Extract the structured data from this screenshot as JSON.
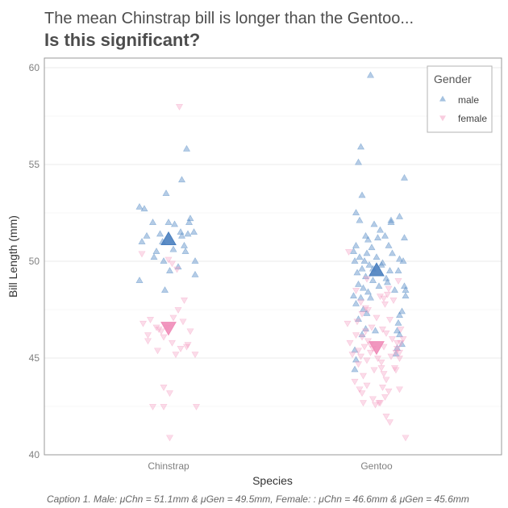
{
  "chart_data": {
    "type": "scatter",
    "title": "The mean Chinstrap bill is longer than the Gentoo...",
    "subtitle": "Is this significant?",
    "xlabel": "Species",
    "ylabel": "Bill Length (mm)",
    "categories": [
      "Chinstrap",
      "Gentoo"
    ],
    "ylim": [
      40,
      60.5
    ],
    "yticks": [
      40,
      45,
      50,
      55,
      60
    ],
    "grid": true,
    "legend": {
      "title": "Gender",
      "position": "top-right",
      "items": [
        {
          "label": "male",
          "shape": "triangle-up",
          "color": "#5b8fc7"
        },
        {
          "label": "female",
          "shape": "triangle-down",
          "color": "#f39bc0"
        }
      ]
    },
    "caption": "Caption 1. Male: μChn = 51.1mm & μGen = 49.5mm, Female: : μChn = 46.6mm & μGen = 45.6mm",
    "colors": {
      "male": "#5b8fc7",
      "female": "#f39bc0"
    },
    "series": [
      {
        "name": "male",
        "points": [
          [
            "Chinstrap",
            52.8,
            -0.24
          ],
          [
            "Chinstrap",
            52.7,
            -0.2
          ],
          [
            "Chinstrap",
            52.0,
            -0.13
          ],
          [
            "Chinstrap",
            51.3,
            -0.18
          ],
          [
            "Chinstrap",
            51.0,
            -0.22
          ],
          [
            "Chinstrap",
            51.4,
            -0.07
          ],
          [
            "Chinstrap",
            50.5,
            -0.1
          ],
          [
            "Chinstrap",
            50.2,
            -0.12
          ],
          [
            "Chinstrap",
            49.0,
            -0.24
          ],
          [
            "Chinstrap",
            53.5,
            -0.02
          ],
          [
            "Chinstrap",
            52.0,
            0.0
          ],
          [
            "Chinstrap",
            51.9,
            0.05
          ],
          [
            "Chinstrap",
            51.5,
            0.1
          ],
          [
            "Chinstrap",
            51.3,
            0.11
          ],
          [
            "Chinstrap",
            50.6,
            0.04
          ],
          [
            "Chinstrap",
            50.0,
            -0.04
          ],
          [
            "Chinstrap",
            49.5,
            0.01
          ],
          [
            "Chinstrap",
            48.5,
            -0.03
          ],
          [
            "Chinstrap",
            55.8,
            0.15
          ],
          [
            "Chinstrap",
            54.2,
            0.11
          ],
          [
            "Chinstrap",
            52.2,
            0.18
          ],
          [
            "Chinstrap",
            52.0,
            0.17
          ],
          [
            "Chinstrap",
            51.5,
            0.21
          ],
          [
            "Chinstrap",
            51.4,
            0.16
          ],
          [
            "Chinstrap",
            50.8,
            0.13
          ],
          [
            "Chinstrap",
            50.5,
            0.14
          ],
          [
            "Chinstrap",
            50.0,
            0.22
          ],
          [
            "Chinstrap",
            49.3,
            0.22
          ],
          [
            "Chinstrap",
            51.0,
            -0.05
          ],
          [
            "Chinstrap",
            49.7,
            0.08
          ],
          [
            "Gentoo",
            59.6,
            -0.05
          ],
          [
            "Gentoo",
            55.9,
            -0.13
          ],
          [
            "Gentoo",
            55.1,
            -0.15
          ],
          [
            "Gentoo",
            53.4,
            -0.12
          ],
          [
            "Gentoo",
            52.5,
            -0.17
          ],
          [
            "Gentoo",
            52.1,
            -0.14
          ],
          [
            "Gentoo",
            51.3,
            -0.09
          ],
          [
            "Gentoo",
            51.1,
            -0.07
          ],
          [
            "Gentoo",
            50.8,
            -0.17
          ],
          [
            "Gentoo",
            50.5,
            -0.19
          ],
          [
            "Gentoo",
            50.4,
            -0.08
          ],
          [
            "Gentoo",
            50.2,
            -0.14
          ],
          [
            "Gentoo",
            50.0,
            -0.18
          ],
          [
            "Gentoo",
            50.0,
            -0.1
          ],
          [
            "Gentoo",
            49.8,
            -0.06
          ],
          [
            "Gentoo",
            49.6,
            -0.12
          ],
          [
            "Gentoo",
            49.4,
            -0.16
          ],
          [
            "Gentoo",
            49.2,
            -0.09
          ],
          [
            "Gentoo",
            49.0,
            -0.03
          ],
          [
            "Gentoo",
            48.8,
            -0.15
          ],
          [
            "Gentoo",
            48.6,
            -0.11
          ],
          [
            "Gentoo",
            48.4,
            -0.07
          ],
          [
            "Gentoo",
            48.2,
            -0.19
          ],
          [
            "Gentoo",
            48.1,
            -0.13
          ],
          [
            "Gentoo",
            47.8,
            -0.17
          ],
          [
            "Gentoo",
            47.5,
            -0.11
          ],
          [
            "Gentoo",
            47.3,
            -0.08
          ],
          [
            "Gentoo",
            47.0,
            -0.15
          ],
          [
            "Gentoo",
            46.5,
            -0.09
          ],
          [
            "Gentoo",
            46.2,
            -0.12
          ],
          [
            "Gentoo",
            45.4,
            -0.18
          ],
          [
            "Gentoo",
            44.9,
            -0.17
          ],
          [
            "Gentoo",
            44.4,
            -0.18
          ],
          [
            "Gentoo",
            51.9,
            -0.02
          ],
          [
            "Gentoo",
            51.2,
            0.01
          ],
          [
            "Gentoo",
            50.7,
            -0.04
          ],
          [
            "Gentoo",
            50.2,
            0.0
          ],
          [
            "Gentoo",
            49.6,
            -0.03
          ],
          [
            "Gentoo",
            48.7,
            0.02
          ],
          [
            "Gentoo",
            48.1,
            -0.05
          ],
          [
            "Gentoo",
            46.4,
            -0.01
          ],
          [
            "Gentoo",
            52.1,
            0.12
          ],
          [
            "Gentoo",
            51.6,
            0.03
          ],
          [
            "Gentoo",
            51.3,
            0.07
          ],
          [
            "Gentoo",
            50.8,
            0.1
          ],
          [
            "Gentoo",
            50.4,
            0.13
          ],
          [
            "Gentoo",
            49.9,
            0.05
          ],
          [
            "Gentoo",
            49.5,
            0.11
          ],
          [
            "Gentoo",
            49.1,
            0.08
          ],
          [
            "Gentoo",
            48.5,
            0.15
          ],
          [
            "Gentoo",
            52.3,
            0.19
          ],
          [
            "Gentoo",
            52.0,
            0.12
          ],
          [
            "Gentoo",
            51.2,
            0.23
          ],
          [
            "Gentoo",
            50.1,
            0.19
          ],
          [
            "Gentoo",
            50.0,
            0.22
          ],
          [
            "Gentoo",
            49.5,
            0.18
          ],
          [
            "Gentoo",
            48.7,
            0.23
          ],
          [
            "Gentoo",
            48.5,
            0.24
          ],
          [
            "Gentoo",
            48.2,
            0.24
          ],
          [
            "Gentoo",
            54.3,
            0.23
          ],
          [
            "Gentoo",
            47.2,
            0.19
          ],
          [
            "Gentoo",
            46.8,
            0.18
          ],
          [
            "Gentoo",
            46.2,
            0.19
          ],
          [
            "Gentoo",
            45.7,
            0.21
          ],
          [
            "Gentoo",
            45.5,
            0.17
          ],
          [
            "Gentoo",
            45.2,
            0.16
          ],
          [
            "Gentoo",
            46.4,
            0.17
          ],
          [
            "Gentoo",
            47.4,
            0.21
          ],
          [
            "Gentoo",
            49.8,
            0.04
          ],
          [
            "Gentoo",
            48.9,
            0.09
          ]
        ]
      },
      {
        "name": "female",
        "points": [
          [
            "Chinstrap",
            58.0,
            0.09
          ],
          [
            "Chinstrap",
            50.4,
            -0.22
          ],
          [
            "Chinstrap",
            50.1,
            0.0
          ],
          [
            "Chinstrap",
            49.9,
            0.03
          ],
          [
            "Chinstrap",
            49.6,
            0.07
          ],
          [
            "Chinstrap",
            48.0,
            0.13
          ],
          [
            "Chinstrap",
            47.5,
            0.08
          ],
          [
            "Chinstrap",
            47.1,
            0.04
          ],
          [
            "Chinstrap",
            47.0,
            -0.15
          ],
          [
            "Chinstrap",
            46.8,
            -0.21
          ],
          [
            "Chinstrap",
            46.6,
            -0.01
          ],
          [
            "Chinstrap",
            46.5,
            -0.08
          ],
          [
            "Chinstrap",
            46.4,
            -0.06
          ],
          [
            "Chinstrap",
            46.2,
            -0.17
          ],
          [
            "Chinstrap",
            46.1,
            -0.04
          ],
          [
            "Chinstrap",
            45.9,
            -0.17
          ],
          [
            "Chinstrap",
            45.8,
            0.03
          ],
          [
            "Chinstrap",
            45.6,
            0.15
          ],
          [
            "Chinstrap",
            45.5,
            0.1
          ],
          [
            "Chinstrap",
            45.4,
            -0.09
          ],
          [
            "Chinstrap",
            45.2,
            0.06
          ],
          [
            "Chinstrap",
            45.2,
            0.22
          ],
          [
            "Chinstrap",
            46.4,
            0.18
          ],
          [
            "Chinstrap",
            46.9,
            0.12
          ],
          [
            "Chinstrap",
            45.7,
            0.16
          ],
          [
            "Chinstrap",
            43.5,
            -0.04
          ],
          [
            "Chinstrap",
            43.2,
            0.01
          ],
          [
            "Chinstrap",
            42.5,
            -0.13
          ],
          [
            "Chinstrap",
            42.5,
            -0.04
          ],
          [
            "Chinstrap",
            42.5,
            0.23
          ],
          [
            "Chinstrap",
            40.9,
            0.01
          ],
          [
            "Chinstrap",
            46.6,
            -0.1
          ],
          [
            "Gentoo",
            50.5,
            -0.23
          ],
          [
            "Gentoo",
            49.1,
            -0.08
          ],
          [
            "Gentoo",
            48.5,
            -0.17
          ],
          [
            "Gentoo",
            48.2,
            0.03
          ],
          [
            "Gentoo",
            48.1,
            0.06
          ],
          [
            "Gentoo",
            47.9,
            -0.13
          ],
          [
            "Gentoo",
            47.6,
            -0.09
          ],
          [
            "Gentoo",
            47.5,
            -0.07
          ],
          [
            "Gentoo",
            47.3,
            -0.12
          ],
          [
            "Gentoo",
            47.1,
            0.0
          ],
          [
            "Gentoo",
            46.9,
            -0.16
          ],
          [
            "Gentoo",
            46.8,
            -0.24
          ],
          [
            "Gentoo",
            46.6,
            -0.04
          ],
          [
            "Gentoo",
            46.4,
            -0.09
          ],
          [
            "Gentoo",
            46.2,
            -0.17
          ],
          [
            "Gentoo",
            46.1,
            -0.12
          ],
          [
            "Gentoo",
            45.9,
            -0.07
          ],
          [
            "Gentoo",
            45.8,
            -0.22
          ],
          [
            "Gentoo",
            45.6,
            -0.1
          ],
          [
            "Gentoo",
            45.5,
            -0.03
          ],
          [
            "Gentoo",
            45.4,
            -0.15
          ],
          [
            "Gentoo",
            45.3,
            -0.05
          ],
          [
            "Gentoo",
            45.2,
            -0.2
          ],
          [
            "Gentoo",
            45.1,
            -0.13
          ],
          [
            "Gentoo",
            45.0,
            0.01
          ],
          [
            "Gentoo",
            44.9,
            -0.08
          ],
          [
            "Gentoo",
            44.7,
            -0.15
          ],
          [
            "Gentoo",
            44.5,
            0.04
          ],
          [
            "Gentoo",
            44.4,
            -0.02
          ],
          [
            "Gentoo",
            44.1,
            -0.11
          ],
          [
            "Gentoo",
            43.8,
            -0.18
          ],
          [
            "Gentoo",
            43.6,
            -0.08
          ],
          [
            "Gentoo",
            43.4,
            -0.14
          ],
          [
            "Gentoo",
            43.2,
            -0.12
          ],
          [
            "Gentoo",
            42.9,
            -0.03
          ],
          [
            "Gentoo",
            42.7,
            -0.11
          ],
          [
            "Gentoo",
            42.6,
            -0.01
          ],
          [
            "Gentoo",
            42.7,
            0.03
          ],
          [
            "Gentoo",
            48.6,
            0.1
          ],
          [
            "Gentoo",
            48.3,
            0.09
          ],
          [
            "Gentoo",
            47.8,
            0.07
          ],
          [
            "Gentoo",
            47.0,
            0.11
          ],
          [
            "Gentoo",
            46.5,
            0.05
          ],
          [
            "Gentoo",
            46.3,
            0.08
          ],
          [
            "Gentoo",
            46.0,
            0.13
          ],
          [
            "Gentoo",
            45.8,
            0.17
          ],
          [
            "Gentoo",
            45.6,
            0.06
          ],
          [
            "Gentoo",
            45.3,
            0.19
          ],
          [
            "Gentoo",
            45.1,
            0.12
          ],
          [
            "Gentoo",
            44.8,
            0.04
          ],
          [
            "Gentoo",
            44.5,
            0.15
          ],
          [
            "Gentoo",
            44.2,
            0.06
          ],
          [
            "Gentoo",
            43.9,
            0.08
          ],
          [
            "Gentoo",
            43.5,
            0.05
          ],
          [
            "Gentoo",
            43.3,
            0.1
          ],
          [
            "Gentoo",
            43.0,
            0.07
          ],
          [
            "Gentoo",
            42.7,
            0.02
          ],
          [
            "Gentoo",
            42.0,
            0.08
          ],
          [
            "Gentoo",
            41.7,
            0.11
          ],
          [
            "Gentoo",
            40.9,
            0.24
          ],
          [
            "Gentoo",
            49.0,
            0.18
          ],
          [
            "Gentoo",
            48.0,
            0.14
          ],
          [
            "Gentoo",
            46.5,
            0.2
          ],
          [
            "Gentoo",
            46.0,
            0.22
          ],
          [
            "Gentoo",
            45.8,
            0.2
          ],
          [
            "Gentoo",
            45.5,
            0.17
          ],
          [
            "Gentoo",
            45.3,
            0.16
          ],
          [
            "Gentoo",
            45.0,
            0.19
          ],
          [
            "Gentoo",
            44.4,
            0.16
          ],
          [
            "Gentoo",
            43.4,
            0.19
          ],
          [
            "Gentoo",
            45.7,
            -0.05
          ]
        ]
      }
    ],
    "means": [
      {
        "series": "male",
        "category": "Chinstrap",
        "value": 51.1
      },
      {
        "series": "male",
        "category": "Gentoo",
        "value": 49.5
      },
      {
        "series": "female",
        "category": "Chinstrap",
        "value": 46.6
      },
      {
        "series": "female",
        "category": "Gentoo",
        "value": 45.6
      }
    ]
  }
}
